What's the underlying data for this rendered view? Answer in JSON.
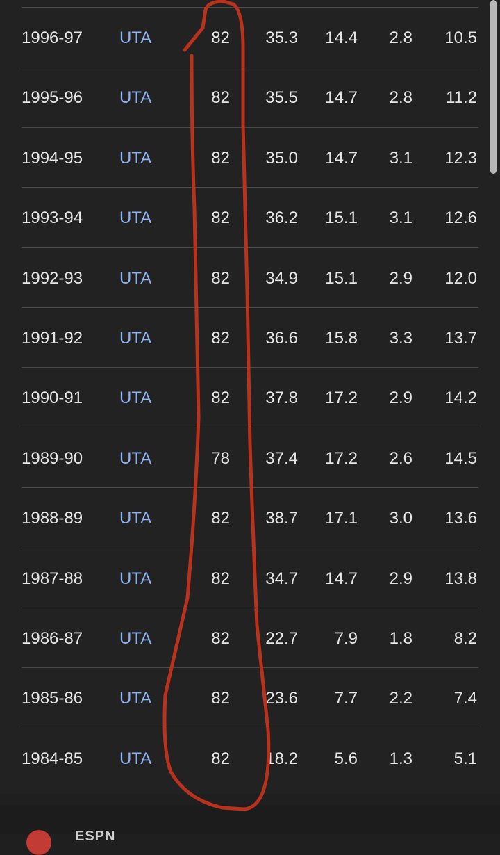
{
  "table": {
    "rows": [
      {
        "season": "1996-97",
        "team": "UTA",
        "gp": "82",
        "min": "35.3",
        "pts": "14.4",
        "reb": "2.8",
        "ast": "10.5"
      },
      {
        "season": "1995-96",
        "team": "UTA",
        "gp": "82",
        "min": "35.5",
        "pts": "14.7",
        "reb": "2.8",
        "ast": "11.2"
      },
      {
        "season": "1994-95",
        "team": "UTA",
        "gp": "82",
        "min": "35.0",
        "pts": "14.7",
        "reb": "3.1",
        "ast": "12.3"
      },
      {
        "season": "1993-94",
        "team": "UTA",
        "gp": "82",
        "min": "36.2",
        "pts": "15.1",
        "reb": "3.1",
        "ast": "12.6"
      },
      {
        "season": "1992-93",
        "team": "UTA",
        "gp": "82",
        "min": "34.9",
        "pts": "15.1",
        "reb": "2.9",
        "ast": "12.0"
      },
      {
        "season": "1991-92",
        "team": "UTA",
        "gp": "82",
        "min": "36.6",
        "pts": "15.8",
        "reb": "3.3",
        "ast": "13.7"
      },
      {
        "season": "1990-91",
        "team": "UTA",
        "gp": "82",
        "min": "37.8",
        "pts": "17.2",
        "reb": "2.9",
        "ast": "14.2"
      },
      {
        "season": "1989-90",
        "team": "UTA",
        "gp": "78",
        "min": "37.4",
        "pts": "17.2",
        "reb": "2.6",
        "ast": "14.5"
      },
      {
        "season": "1988-89",
        "team": "UTA",
        "gp": "82",
        "min": "38.7",
        "pts": "17.1",
        "reb": "3.0",
        "ast": "13.6"
      },
      {
        "season": "1987-88",
        "team": "UTA",
        "gp": "82",
        "min": "34.7",
        "pts": "14.7",
        "reb": "2.9",
        "ast": "13.8"
      },
      {
        "season": "1986-87",
        "team": "UTA",
        "gp": "82",
        "min": "22.7",
        "pts": "7.9",
        "reb": "1.8",
        "ast": "8.2"
      },
      {
        "season": "1985-86",
        "team": "UTA",
        "gp": "82",
        "min": "23.6",
        "pts": "7.7",
        "reb": "2.2",
        "ast": "7.4"
      },
      {
        "season": "1984-85",
        "team": "UTA",
        "gp": "82",
        "min": "18.2",
        "pts": "5.6",
        "reb": "1.3",
        "ast": "5.1"
      }
    ]
  },
  "footer": {
    "brand": "ESPN",
    "logo_icon": "espn-logo-icon"
  },
  "colors": {
    "team_link": "#8fb3f0",
    "annotation_stroke": "#b8321e",
    "background": "#222222"
  },
  "annotation": {
    "type": "hand-drawn-outline",
    "highlights_column": "gp"
  }
}
